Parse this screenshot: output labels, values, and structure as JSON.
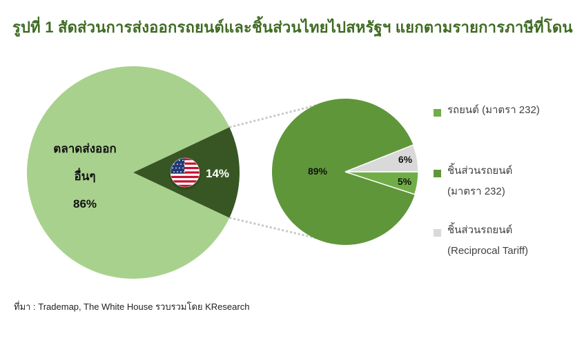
{
  "title": "รูปที่ 1 สัดส่วนการส่งออกรถยนต์และชิ้นส่วนไทยไปสหรัฐฯ แยกตามรายการภาษีที่โดน",
  "source": "ที่มา : Trademap, The White House รวบรวมโดย KResearch",
  "colors": {
    "light_green": "#a9d18e",
    "dark_green": "#375623",
    "mid_green": "#5f963a",
    "light_green2": "#70ad47",
    "grey": "#d9d9d9",
    "title": "#3f6b23"
  },
  "icons": {
    "us_flag": "us-flag-icon"
  },
  "chart_data": [
    {
      "type": "pie",
      "slices": [
        {
          "label_lines": [
            "ตลาดส่งออก",
            "อื่นๆ",
            "86%"
          ],
          "value": 86
        },
        {
          "label": "14%",
          "value": 14
        }
      ]
    },
    {
      "type": "pie",
      "slices": [
        {
          "label": "89%",
          "value": 89
        },
        {
          "label": "5%",
          "value": 5
        },
        {
          "label": "6%",
          "value": 6
        }
      ],
      "legend": [
        {
          "lines": [
            "รถยนต์ (มาตรา 232)"
          ]
        },
        {
          "lines": [
            "ชิ้นส่วนรถยนต์",
            "(มาตรา 232)"
          ]
        },
        {
          "lines": [
            "ชิ้นส่วนรถยนต์",
            "(Reciprocal Tariff)"
          ]
        }
      ]
    }
  ]
}
